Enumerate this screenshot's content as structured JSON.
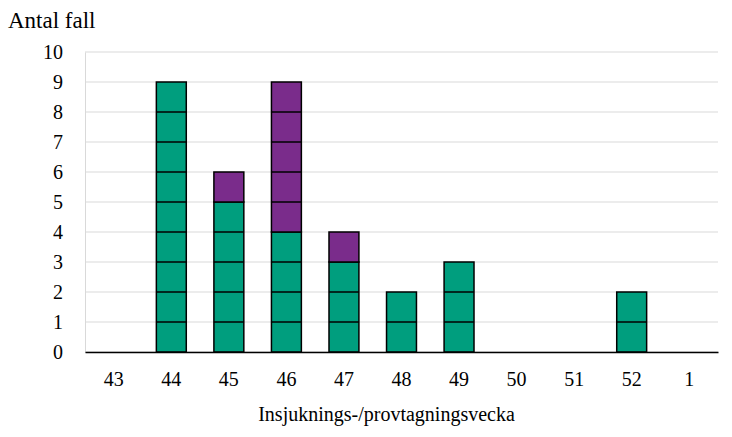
{
  "chart_data": {
    "type": "bar",
    "stacked": true,
    "grid": true,
    "y_label": "Antal fall",
    "x_label": "Insjuknings-/provtagningsvecka",
    "categories": [
      "43",
      "44",
      "45",
      "46",
      "47",
      "48",
      "49",
      "50",
      "51",
      "52",
      "1"
    ],
    "series": [
      {
        "color": "#009e7e",
        "values": [
          0,
          9,
          5,
          4,
          3,
          2,
          3,
          0,
          0,
          2,
          0
        ]
      },
      {
        "color": "#7a2c8b",
        "values": [
          0,
          0,
          1,
          5,
          1,
          0,
          0,
          0,
          0,
          0,
          0
        ]
      }
    ],
    "ylim": [
      0,
      10
    ],
    "yticks": [
      0,
      1,
      2,
      3,
      4,
      5,
      6,
      7,
      8,
      9,
      10
    ]
  }
}
